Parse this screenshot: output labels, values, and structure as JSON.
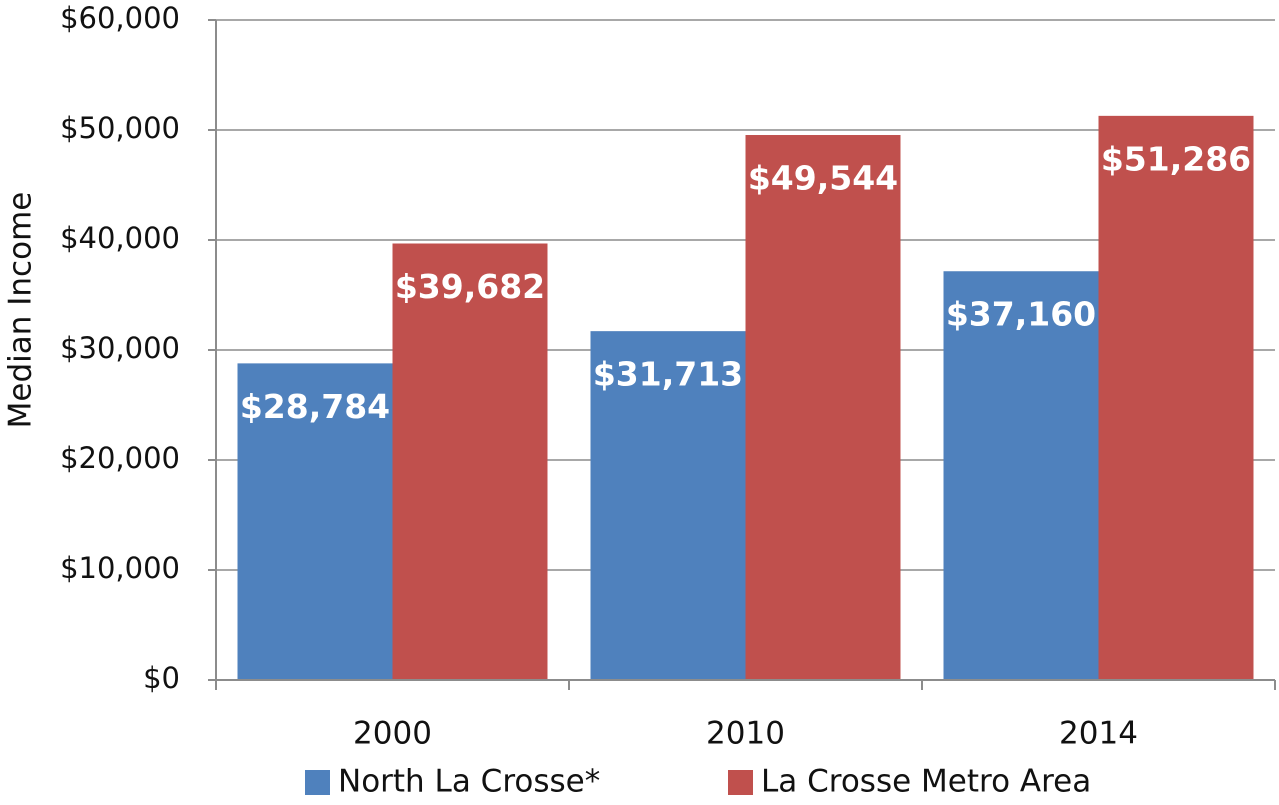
{
  "chart_data": {
    "type": "bar",
    "y_label": "Median Income",
    "categories": [
      "2000",
      "2010",
      "2014"
    ],
    "series": [
      {
        "name": "North La Crosse*",
        "color": "#4f81bd",
        "values": [
          28784,
          31713,
          37160
        ],
        "value_labels": [
          "$28,784",
          "$31,713",
          "$37,160"
        ]
      },
      {
        "name": "La Crosse Metro Area",
        "color": "#c0504d",
        "values": [
          39682,
          49544,
          51286
        ],
        "value_labels": [
          "$39,682",
          "$49,544",
          "$51,286"
        ]
      }
    ],
    "ylim": [
      0,
      60000
    ],
    "yticks": [
      {
        "value": 0,
        "label": "$0"
      },
      {
        "value": 10000,
        "label": "$10,000"
      },
      {
        "value": 20000,
        "label": "$20,000"
      },
      {
        "value": 30000,
        "label": "$30,000"
      },
      {
        "value": 40000,
        "label": "$40,000"
      },
      {
        "value": 50000,
        "label": "$50,000"
      },
      {
        "value": 60000,
        "label": "$60,000"
      }
    ],
    "grid": true
  }
}
